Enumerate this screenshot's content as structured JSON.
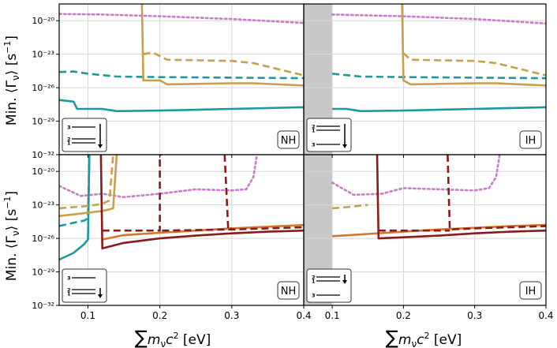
{
  "colors": {
    "teal": "#1a9a9e",
    "gold": "#c8a04a",
    "purple": "#c77bc9",
    "orange": "#d2752d",
    "darkred": "#8b1a1a",
    "grid": "#d6d6d6",
    "shade": "#c8c8c8"
  },
  "chart_data": {
    "type": "line",
    "shared": {
      "ylabel": "Min. (Γν) [s⁻¹]",
      "ylabel_text": "Min. ⟨Γ",
      "ylabel_sub": "ν",
      "ylabel_tail": "⟩ [s",
      "ylabel_sup": "−1",
      "ylabel_close": "]",
      "xlabel_sum": "∑",
      "xlabel_m": "m",
      "xlabel_sub": "ν",
      "xlabel_c": "c",
      "xlabel_sup": "2",
      "xlabel_unit": " [eV]",
      "ylog_range": [
        -32,
        -18.5
      ],
      "ytick_exps": [
        -20,
        -23,
        -26,
        -29,
        -32
      ],
      "ytick_labels": [
        "10⁻²⁰",
        "10⁻²³",
        "10⁻²⁶",
        "10⁻²⁹",
        "10⁻³²"
      ],
      "level_labels": [
        "3",
        "2",
        "1"
      ]
    },
    "panels": [
      {
        "name": "top-left",
        "ordering": "NH",
        "xlim": [
          0.06,
          0.4
        ],
        "xticks": [
          0.1,
          0.2,
          0.3,
          0.4
        ],
        "xtick_labels": [],
        "shade_to": null,
        "diagram": "nh-down",
        "series": [
          {
            "color": "purple",
            "dash": "dot",
            "x": [
              0.06,
              0.12,
              0.2,
              0.3,
              0.4
            ],
            "y": [
              -19.4,
              -19.45,
              -19.6,
              -19.85,
              -20.2
            ]
          },
          {
            "color": "teal",
            "dash": "dash",
            "x": [
              0.06,
              0.08,
              0.1,
              0.14,
              0.2,
              0.3,
              0.4
            ],
            "y": [
              -24.6,
              -24.55,
              -24.75,
              -25.0,
              -25.05,
              -25.1,
              -25.15
            ]
          },
          {
            "color": "teal",
            "dash": "solid",
            "x": [
              0.06,
              0.08,
              0.085,
              0.12,
              0.14,
              0.2,
              0.3,
              0.4
            ],
            "y": [
              -27.1,
              -27.25,
              -27.9,
              -27.9,
              -28.1,
              -28.05,
              -27.9,
              -27.75
            ]
          },
          {
            "color": "gold",
            "dash": "solid",
            "x": [
              0.175,
              0.177,
              0.2,
              0.21,
              0.3,
              0.33,
              0.4
            ],
            "y": [
              -18.5,
              -25.35,
              -25.35,
              -25.7,
              -25.6,
              -25.6,
              -25.8
            ]
          },
          {
            "color": "gold",
            "dash": "dash",
            "x": [
              0.177,
              0.19,
              0.21,
              0.3,
              0.33,
              0.4
            ],
            "y": [
              -23.0,
              -22.85,
              -23.5,
              -23.6,
              -23.8,
              -24.9
            ]
          }
        ]
      },
      {
        "name": "top-right",
        "ordering": "IH",
        "xlim": [
          0.06,
          0.4
        ],
        "xticks": [
          0.1,
          0.2,
          0.3,
          0.4
        ],
        "xtick_labels": [],
        "shade_to": 0.1,
        "diagram": "ih-down",
        "series": [
          {
            "color": "purple",
            "dash": "dot",
            "x": [
              0.1,
              0.2,
              0.3,
              0.4
            ],
            "y": [
              -19.45,
              -19.6,
              -19.85,
              -20.25
            ]
          },
          {
            "color": "teal",
            "dash": "dash",
            "x": [
              0.1,
              0.14,
              0.2,
              0.3,
              0.4
            ],
            "y": [
              -24.75,
              -25.0,
              -25.05,
              -25.1,
              -25.15
            ]
          },
          {
            "color": "teal",
            "dash": "solid",
            "x": [
              0.1,
              0.12,
              0.14,
              0.2,
              0.3,
              0.4
            ],
            "y": [
              -27.9,
              -27.9,
              -28.1,
              -28.05,
              -27.9,
              -27.75
            ]
          },
          {
            "color": "gold",
            "dash": "solid",
            "x": [
              0.198,
              0.2,
              0.21,
              0.3,
              0.33,
              0.4
            ],
            "y": [
              -18.5,
              -25.35,
              -25.7,
              -25.6,
              -25.6,
              -25.8
            ]
          },
          {
            "color": "gold",
            "dash": "dash",
            "x": [
              0.2,
              0.21,
              0.3,
              0.33,
              0.4
            ],
            "y": [
              -22.9,
              -23.5,
              -23.6,
              -23.8,
              -24.9
            ]
          }
        ]
      },
      {
        "name": "bottom-left",
        "ordering": "NH",
        "xlim": [
          0.06,
          0.4
        ],
        "xticks": [
          0.1,
          0.2,
          0.3,
          0.4
        ],
        "xtick_labels": [
          "0.1",
          "0.2",
          "0.3",
          "0.4"
        ],
        "shade_to": null,
        "diagram": "nh-down-low",
        "series": [
          {
            "color": "purple",
            "dash": "dot",
            "x": [
              0.06,
              0.09,
              0.12,
              0.15,
              0.2,
              0.25,
              0.3,
              0.32,
              0.33,
              0.335
            ],
            "y": [
              -21.3,
              -22.2,
              -22.0,
              -22.3,
              -22.0,
              -21.6,
              -21.7,
              -21.6,
              -20.5,
              -18.5
            ]
          },
          {
            "color": "teal",
            "dash": "solid",
            "x": [
              0.06,
              0.08,
              0.095,
              0.1,
              0.102
            ],
            "y": [
              -27.9,
              -27.3,
              -26.5,
              -26.1,
              -18.5
            ]
          },
          {
            "color": "teal",
            "dash": "dash",
            "x": [
              0.06,
              0.08,
              0.095,
              0.1,
              0.102
            ],
            "y": [
              -24.9,
              -24.6,
              -24.4,
              -24.2,
              -18.5
            ]
          },
          {
            "color": "gold",
            "dash": "solid",
            "x": [
              0.06,
              0.1,
              0.12,
              0.13,
              0.135,
              0.14
            ],
            "y": [
              -24.0,
              -23.7,
              -23.55,
              -23.4,
              -23.3,
              -18.5
            ]
          },
          {
            "color": "gold",
            "dash": "dash",
            "x": [
              0.06,
              0.1,
              0.12,
              0.13,
              0.135
            ],
            "y": [
              -23.3,
              -23.1,
              -22.9,
              -22.6,
              -18.5
            ]
          },
          {
            "color": "orange",
            "dash": "solid",
            "x": [
              0.12,
              0.15,
              0.2,
              0.25,
              0.3,
              0.35,
              0.4
            ],
            "y": [
              -26.1,
              -25.7,
              -25.5,
              -25.3,
              -25.1,
              -24.95,
              -24.8
            ]
          },
          {
            "color": "darkred",
            "dash": "solid",
            "x": [
              0.118,
              0.12,
              0.15,
              0.2,
              0.25,
              0.3,
              0.35,
              0.4
            ],
            "y": [
              -18.5,
              -26.9,
              -26.4,
              -26.0,
              -25.75,
              -25.55,
              -25.4,
              -25.3
            ]
          },
          {
            "color": "darkred",
            "dash": "dash",
            "x": [
              0.12,
              0.2,
              0.2,
              0.203
            ],
            "y": [
              -25.3,
              -25.3,
              -18.5,
              -18.5
            ]
          },
          {
            "color": "darkred",
            "dash": "dash",
            "x": [
              0.203,
              0.3,
              0.4
            ],
            "y": [
              -25.3,
              -25.2,
              -25.0
            ]
          },
          {
            "color": "darkred",
            "dash": "dash",
            "x": [
              0.29,
              0.295,
              0.3
            ],
            "y": [
              -18.5,
              -25.2,
              -25.1
            ]
          }
        ]
      },
      {
        "name": "bottom-right",
        "ordering": "IH",
        "xlim": [
          0.06,
          0.4
        ],
        "xticks": [
          0.1,
          0.2,
          0.3,
          0.4
        ],
        "xtick_labels": [
          "0.1",
          "0.2",
          "0.3",
          "0.4"
        ],
        "shade_to": 0.1,
        "diagram": "ih-down-low",
        "series": [
          {
            "color": "purple",
            "dash": "dot",
            "x": [
              0.1,
              0.13,
              0.17,
              0.2,
              0.25,
              0.3,
              0.32,
              0.33,
              0.335
            ],
            "y": [
              -21.0,
              -22.1,
              -22.0,
              -21.5,
              -21.6,
              -21.7,
              -21.5,
              -20.5,
              -18.5
            ]
          },
          {
            "color": "orange",
            "dash": "solid",
            "x": [
              0.1,
              0.15,
              0.2,
              0.25,
              0.3,
              0.35,
              0.4
            ],
            "y": [
              -25.8,
              -25.6,
              -25.4,
              -25.2,
              -25.05,
              -24.9,
              -24.8
            ]
          },
          {
            "color": "gold",
            "dash": "dash",
            "x": [
              0.1,
              0.12,
              0.15
            ],
            "y": [
              -23.3,
              -23.2,
              -23.0
            ]
          },
          {
            "color": "darkred",
            "dash": "solid",
            "x": [
              0.163,
              0.165,
              0.2,
              0.25,
              0.3,
              0.35,
              0.4
            ],
            "y": [
              -18.5,
              -26.0,
              -25.9,
              -25.75,
              -25.55,
              -25.4,
              -25.3
            ]
          },
          {
            "color": "darkred",
            "dash": "dash",
            "x": [
              0.165,
              0.2,
              0.265
            ],
            "y": [
              -25.3,
              -25.3,
              -25.3
            ]
          },
          {
            "color": "darkred",
            "dash": "dash",
            "x": [
              0.262,
              0.265,
              0.3,
              0.4
            ],
            "y": [
              -18.5,
              -25.2,
              -25.1,
              -24.9
            ]
          }
        ]
      }
    ]
  }
}
